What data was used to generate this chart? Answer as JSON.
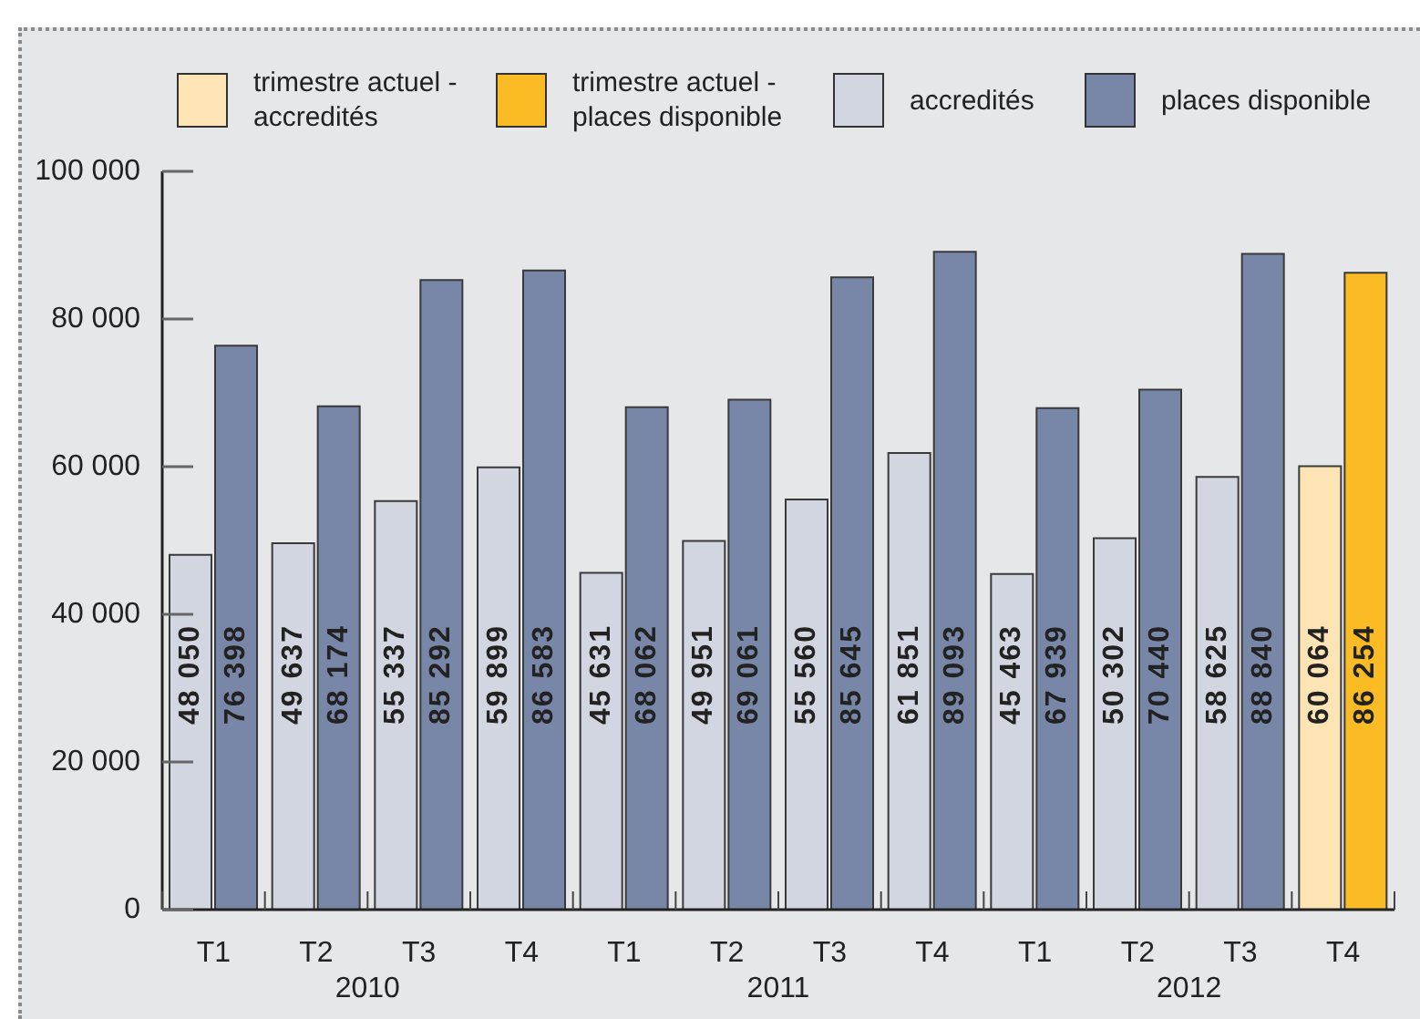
{
  "chart_data": {
    "type": "bar",
    "categories": [
      "T1",
      "T2",
      "T3",
      "T4",
      "T1",
      "T2",
      "T3",
      "T4",
      "T1",
      "T2",
      "T3",
      "T4"
    ],
    "series": [
      {
        "name": "trimestre actuel - accredités",
        "color": "#fde4b4",
        "values": [
          null,
          null,
          null,
          null,
          null,
          null,
          null,
          null,
          null,
          null,
          null,
          60064
        ],
        "value_labels": [
          null,
          null,
          null,
          null,
          null,
          null,
          null,
          null,
          null,
          null,
          null,
          "60 064"
        ]
      },
      {
        "name": "trimestre actuel - places disponible",
        "color": "#fbbb24",
        "values": [
          null,
          null,
          null,
          null,
          null,
          null,
          null,
          null,
          null,
          null,
          null,
          86254
        ],
        "value_labels": [
          null,
          null,
          null,
          null,
          null,
          null,
          null,
          null,
          null,
          null,
          null,
          "86 254"
        ]
      },
      {
        "name": "accredités",
        "color": "#d2d6e1",
        "values": [
          48050,
          49637,
          55337,
          59899,
          45631,
          49951,
          55560,
          61851,
          45463,
          50302,
          58625,
          null
        ],
        "value_labels": [
          "48 050",
          "49 637",
          "55 337",
          "59 899",
          "45 631",
          "49 951",
          "55 560",
          "61 851",
          "45 463",
          "50 302",
          "58 625",
          null
        ]
      },
      {
        "name": "places disponible",
        "color": "#7886a8",
        "values": [
          76398,
          68174,
          85292,
          86583,
          68062,
          69061,
          85645,
          89093,
          67939,
          70440,
          88840,
          null
        ],
        "value_labels": [
          "76 398",
          "68 174",
          "85 292",
          "86 583",
          "68 062",
          "69 061",
          "85 645",
          "89 093",
          "67 939",
          "70 440",
          "88 840",
          null
        ]
      }
    ],
    "ylim": [
      0,
      100000
    ],
    "yticks": [
      0,
      {
        "value": 20000,
        "label": "20 000"
      },
      {
        "value": 40000,
        "label": "40 000"
      },
      {
        "value": 60000,
        "label": "60 000"
      },
      {
        "value": 80000,
        "label": "80 000"
      },
      {
        "value": 100000,
        "label": "100 000"
      }
    ],
    "legend": "top",
    "annotations": [
      "2010",
      "2011",
      "2012"
    ]
  }
}
